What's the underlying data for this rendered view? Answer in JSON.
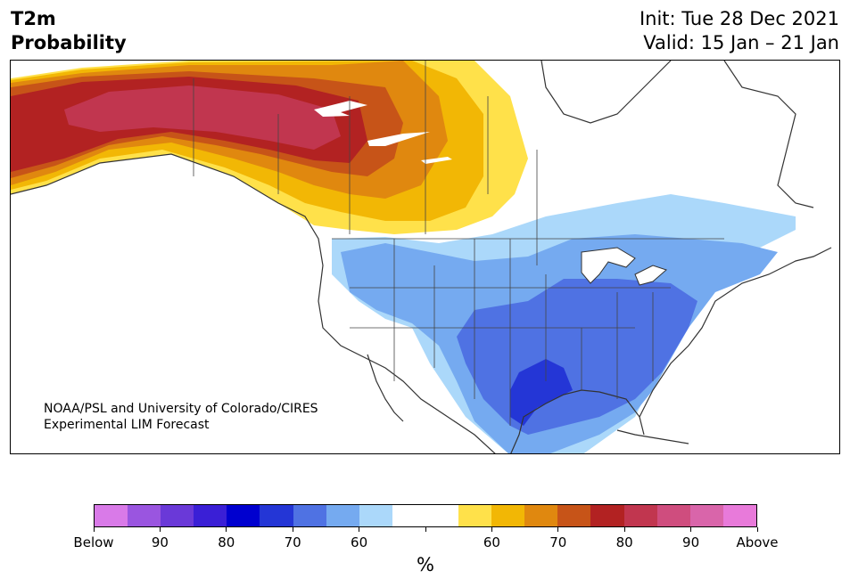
{
  "header": {
    "title_line1": "T2m",
    "title_line2": "Probability",
    "init": "Init: Tue 28 Dec 2021",
    "valid": "Valid: 15 Jan – 21 Jan"
  },
  "credit": {
    "line1": "NOAA/PSL and University of Colorado/CIRES",
    "line2": "Experimental LIM Forecast"
  },
  "colorbar": {
    "colors": [
      "#d97ae8",
      "#9a55e0",
      "#6a39d8",
      "#3a1fd6",
      "#0000cf",
      "#2436d6",
      "#4f72e3",
      "#75aaf0",
      "#abd8fa",
      "#ffffff",
      "#ffffff",
      "#ffe14a",
      "#f2b705",
      "#e0880f",
      "#c75418",
      "#b22222",
      "#c1364f",
      "#cf4d7e",
      "#d965aa",
      "#e87ada"
    ],
    "tick_labels": [
      "Below",
      "90",
      "80",
      "70",
      "60",
      "",
      "60",
      "70",
      "80",
      "90",
      "Above"
    ],
    "unit": "%"
  },
  "map": {
    "region": "North America",
    "palette": {
      "ocean": "#ffffff",
      "outline": "#333333",
      "state_line": "#444444",
      "above_55": "#ffe14a",
      "above_60": "#f2b705",
      "above_65": "#e0880f",
      "above_70": "#c75418",
      "above_75": "#b22222",
      "above_80": "#c1364f",
      "below_55": "#abd8fa",
      "below_60": "#75aaf0",
      "below_65": "#4f72e3",
      "below_70": "#2436d6"
    }
  }
}
